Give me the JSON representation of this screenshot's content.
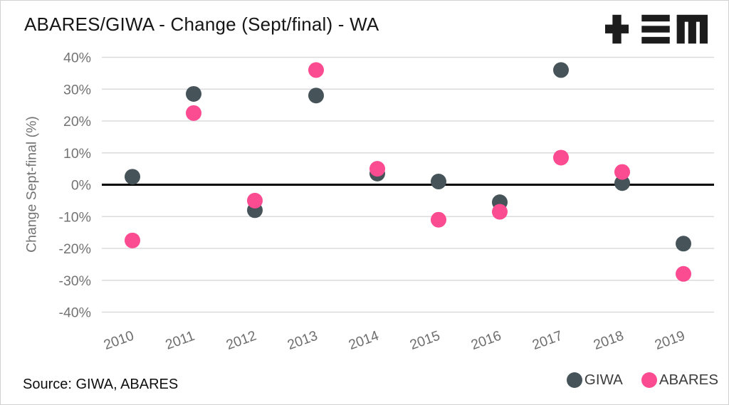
{
  "header": {
    "title": "ABARES/GIWA - Change (Sept/final) - WA",
    "logo": "tem-logo"
  },
  "footer": {
    "source": "Source: GIWA, ABARES"
  },
  "colors": {
    "giwa": "#46545A",
    "abares": "#FB4B91",
    "gridline": "#DBDBDB",
    "zero_line": "#000000",
    "axis_text": "#737373",
    "title_text": "#161616",
    "legend_text": "#3d3d3d",
    "logo": "#1c1c1c"
  },
  "chart_data": {
    "type": "scatter",
    "title": "ABARES/GIWA - Change (Sept/final) - WA",
    "categories": [
      "2010",
      "2011",
      "2012",
      "2013",
      "2014",
      "2015",
      "2016",
      "2017",
      "2018",
      "2019"
    ],
    "series": [
      {
        "name": "GIWA",
        "color": "#46545A",
        "values": [
          2.5,
          28.5,
          -8,
          28,
          3.5,
          1,
          -5.5,
          36,
          0.5,
          -18.5
        ]
      },
      {
        "name": "ABARES",
        "color": "#FB4B91",
        "values": [
          -17.5,
          22.5,
          -5,
          36,
          5,
          -11,
          -8.5,
          8.5,
          4,
          -28
        ]
      }
    ],
    "xlabel": "",
    "ylabel": "Change Sept-final (%)",
    "ylim": [
      -40,
      40
    ],
    "ytick_step": 10,
    "ytick_format": "percent",
    "grid": true,
    "zero_line": true,
    "legend_position": "bottom-right"
  }
}
